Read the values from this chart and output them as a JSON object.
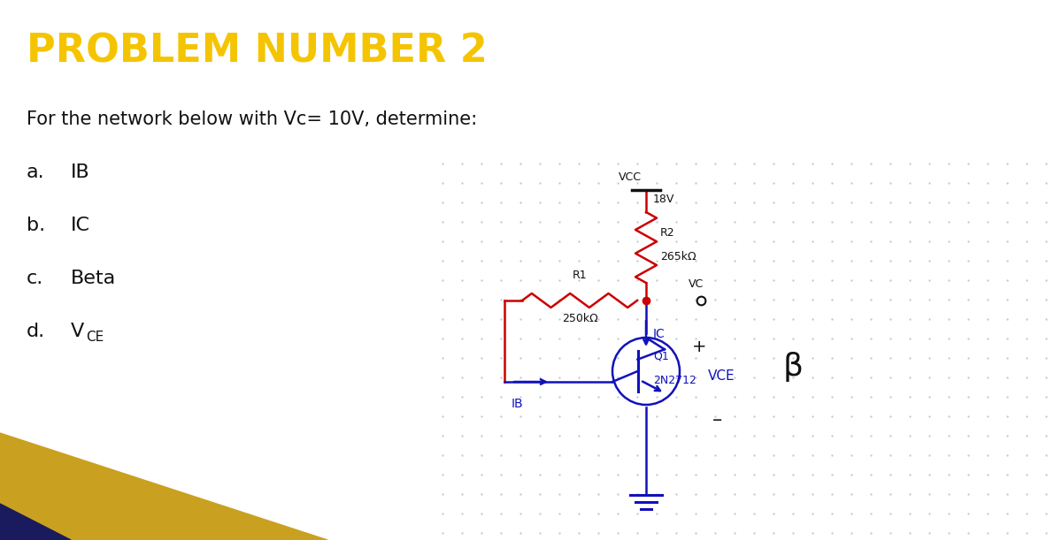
{
  "title": "PROBLEM NUMBER 2",
  "title_color": "#F5C400",
  "title_fontsize": 32,
  "title_fontweight": "bold",
  "bg_color": "#FFFFFF",
  "problem_text": "For the network below with Vc= 10V, determine:",
  "problem_fontsize": 15,
  "item_fontsize": 16,
  "circuit_color_red": "#CC0000",
  "circuit_color_blue": "#1111BB",
  "circuit_color_black": "#111111",
  "vcc_text": "VCC",
  "vcc_val": "18V",
  "r2_text": "R2",
  "r2_val": "265kΩ",
  "r1_text": "R1",
  "r1_val": "250kΩ",
  "vc_text": "VC",
  "ic_text": "IC",
  "ib_text": "IB",
  "q1_text": "Q1",
  "q1_model": "2N2712",
  "vce_text": "VCE",
  "beta_text": "β",
  "plus_text": "+",
  "minus_text": "–",
  "gold_color": "#C9A020",
  "navy_color": "#1a1a5e"
}
